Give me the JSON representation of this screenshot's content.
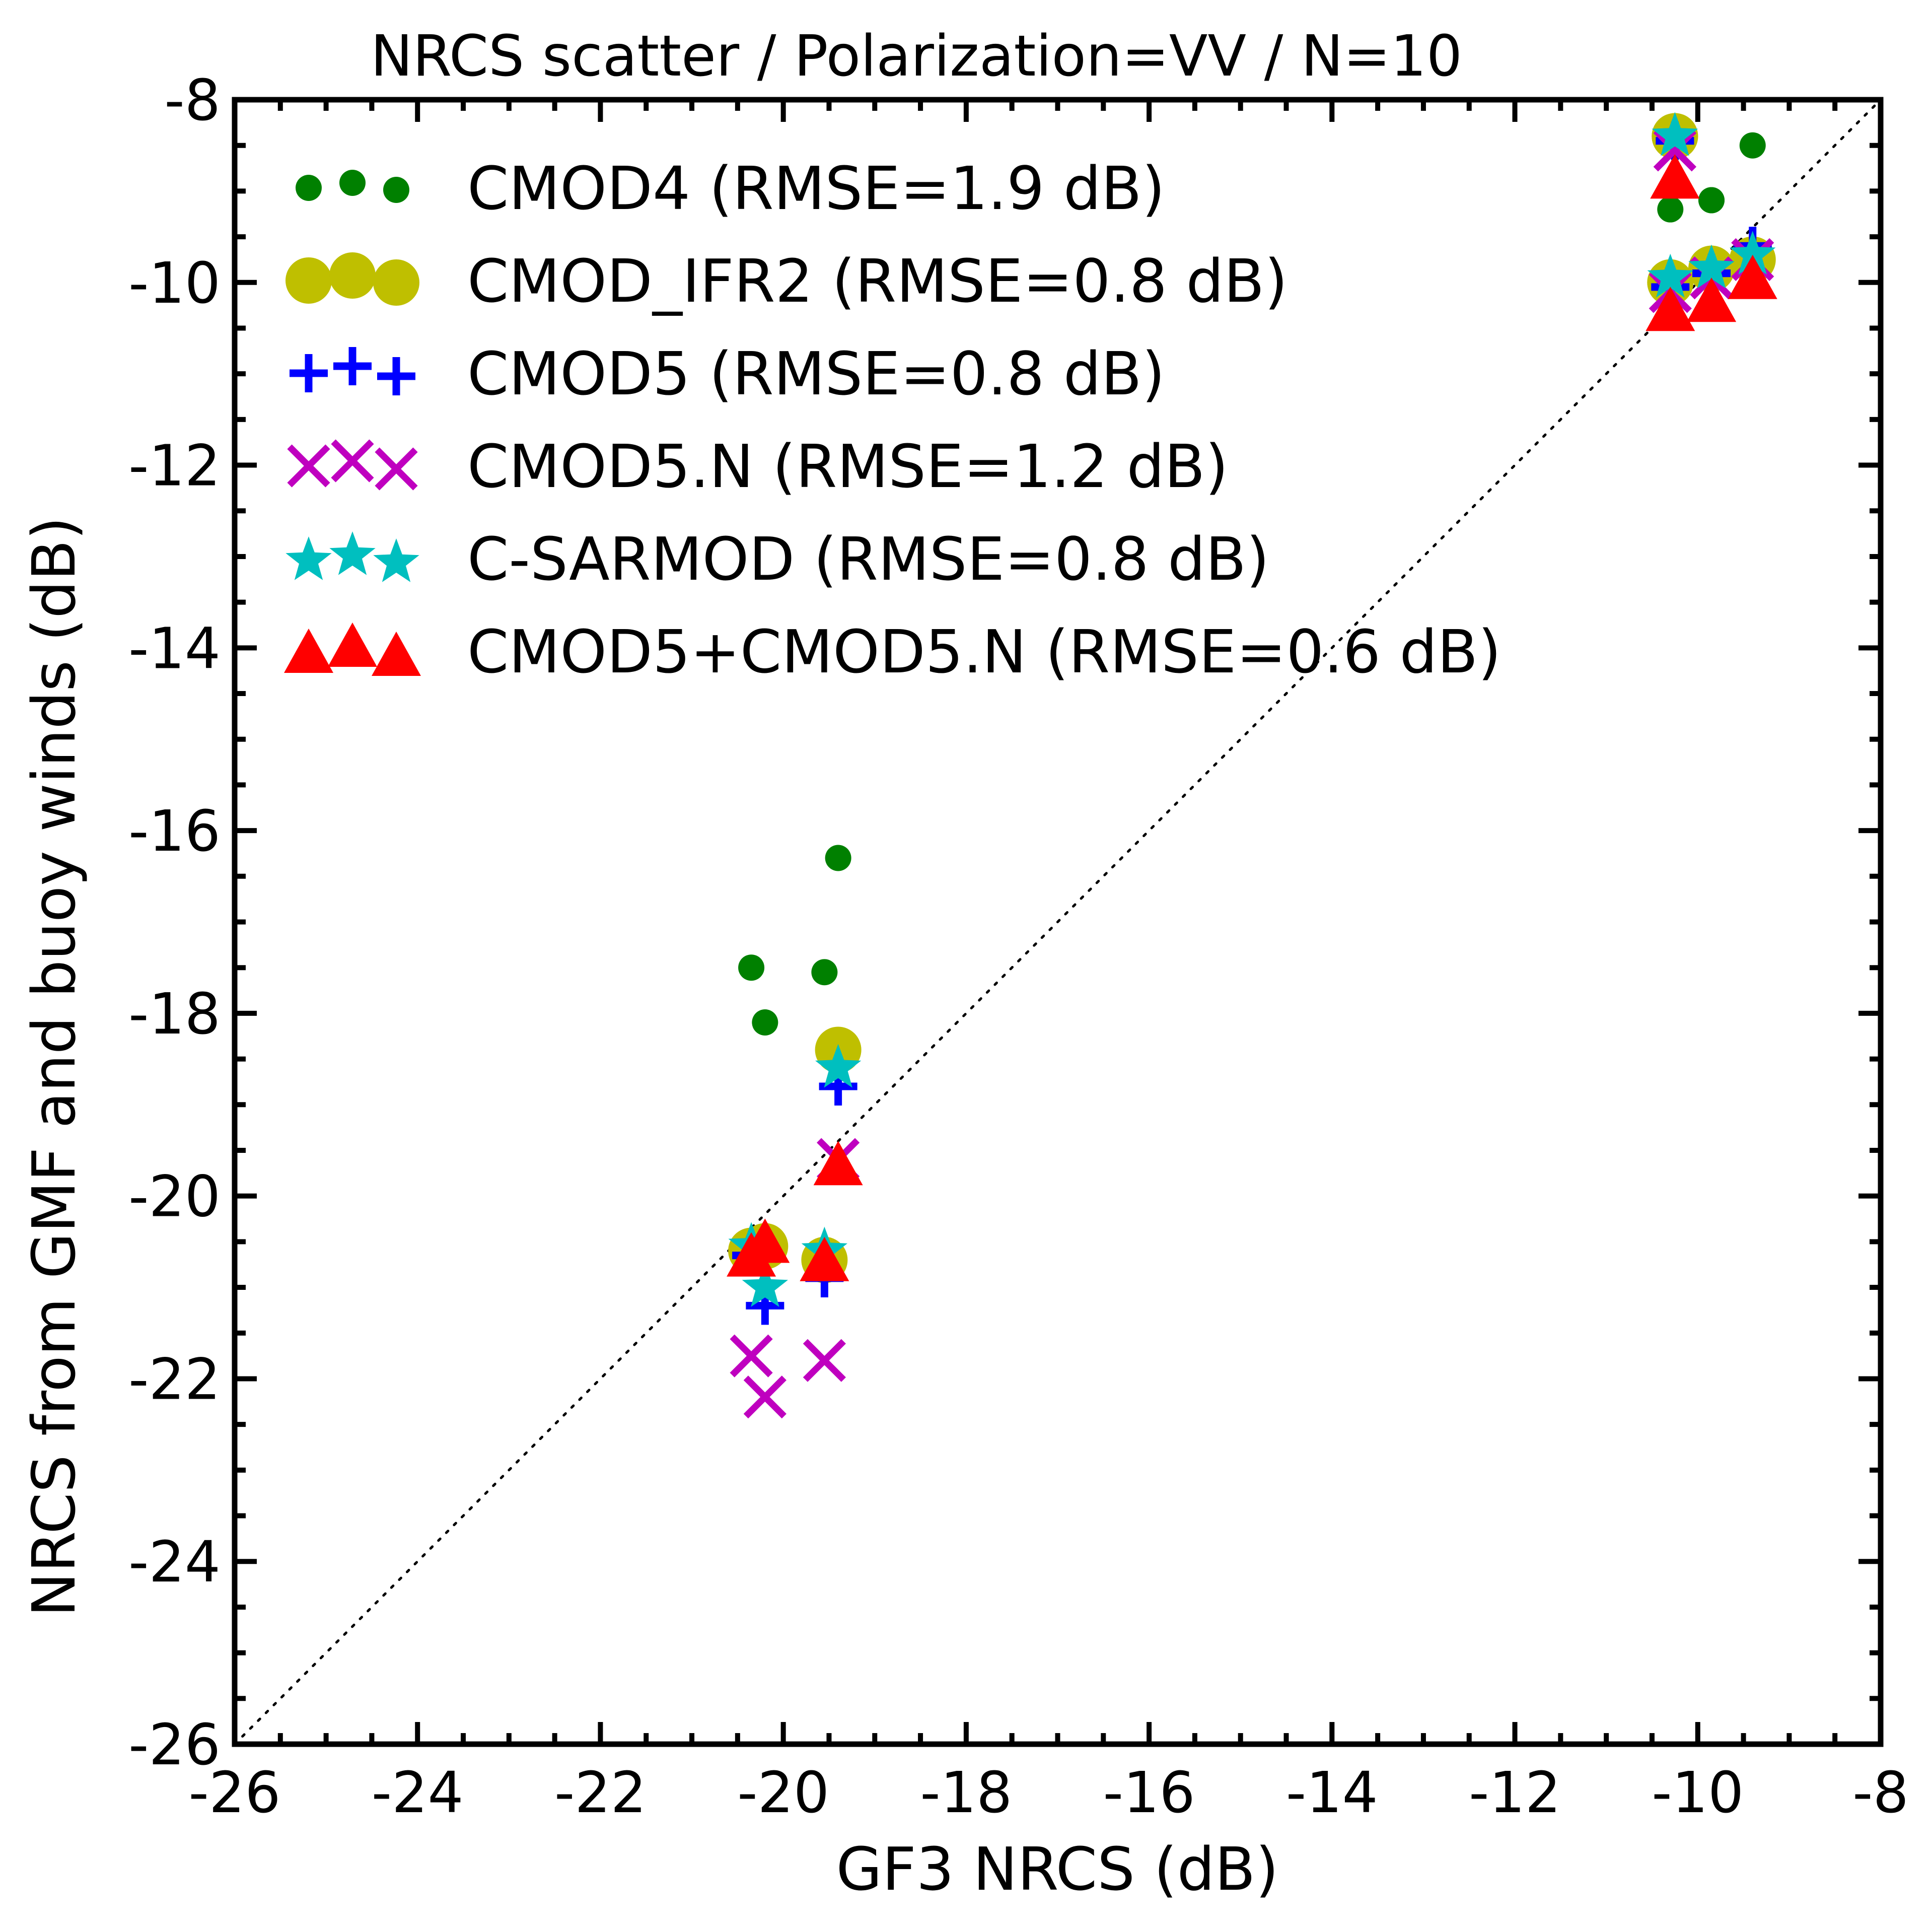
{
  "chart_data": {
    "type": "scatter",
    "title": "NRCS scatter / Polarization=VV / N=10",
    "xlabel": "GF3 NRCS (dB)",
    "ylabel": "NRCS from GMF and buoy winds (dB)",
    "xlim": [
      -26,
      -8
    ],
    "ylim": [
      -26,
      -8
    ],
    "xticks": [
      -26,
      -24,
      -22,
      -20,
      -18,
      -16,
      -14,
      -12,
      -10,
      -8
    ],
    "yticks": [
      -26,
      -24,
      -22,
      -20,
      -18,
      -16,
      -14,
      -12,
      -10,
      -8
    ],
    "xtick_labels": [
      "-26",
      "-24",
      "-22",
      "-20",
      "-18",
      "-16",
      "-14",
      "-12",
      "-10",
      "-8"
    ],
    "ytick_labels": [
      "-26",
      "-24",
      "-22",
      "-20",
      "-18",
      "-16",
      "-14",
      "-12",
      "-10",
      "-8"
    ],
    "reference_line": "y = x (dotted)",
    "legend_position": "upper-left",
    "x": [
      -20.35,
      -20.2,
      -19.55,
      -19.4,
      -10.3,
      -10.25,
      -9.85,
      -9.4,
      -10.25,
      -9.85
    ],
    "series": [
      {
        "name": "CMOD4 (RMSE=1.9 dB)",
        "marker": "circle-small",
        "color": "#008000",
        "points": [
          [
            -20.35,
            -17.5
          ],
          [
            -20.2,
            -18.1
          ],
          [
            -19.55,
            -17.55
          ],
          [
            -19.4,
            -16.3
          ],
          [
            -10.3,
            -9.2
          ],
          [
            -10.25,
            -8.4
          ],
          [
            -9.85,
            -9.1
          ],
          [
            -9.4,
            -8.5
          ],
          [
            -10.25,
            -8.4
          ],
          [
            -9.85,
            -9.1
          ]
        ]
      },
      {
        "name": "CMOD_IFR2 (RMSE=0.8 dB)",
        "marker": "circle-large",
        "color": "#bfbf00",
        "points": [
          [
            -20.35,
            -20.6
          ],
          [
            -20.2,
            -20.55
          ],
          [
            -19.55,
            -20.7
          ],
          [
            -19.4,
            -18.4
          ],
          [
            -10.3,
            -10.0
          ],
          [
            -10.25,
            -8.4
          ],
          [
            -9.85,
            -9.85
          ],
          [
            -9.4,
            -9.75
          ],
          [
            -10.25,
            -8.4
          ],
          [
            -9.85,
            -9.85
          ]
        ]
      },
      {
        "name": "CMOD5 (RMSE=0.8 dB)",
        "marker": "plus",
        "color": "#0000ff",
        "points": [
          [
            -20.35,
            -20.65
          ],
          [
            -20.2,
            -21.2
          ],
          [
            -19.55,
            -20.9
          ],
          [
            -19.4,
            -18.8
          ],
          [
            -10.3,
            -10.05
          ],
          [
            -10.25,
            -8.45
          ],
          [
            -9.85,
            -9.9
          ],
          [
            -9.4,
            -9.6
          ],
          [
            -10.25,
            -8.45
          ],
          [
            -9.85,
            -9.9
          ]
        ]
      },
      {
        "name": "CMOD5.N (RMSE=1.2 dB)",
        "marker": "x",
        "color": "#bf00bf",
        "points": [
          [
            -20.35,
            -21.75
          ],
          [
            -20.2,
            -22.2
          ],
          [
            -19.55,
            -21.8
          ],
          [
            -19.4,
            -19.6
          ],
          [
            -10.3,
            -10.1
          ],
          [
            -10.25,
            -8.55
          ],
          [
            -9.85,
            -9.95
          ],
          [
            -9.4,
            -9.75
          ],
          [
            -10.25,
            -8.55
          ],
          [
            -9.85,
            -9.95
          ]
        ]
      },
      {
        "name": "C-SARMOD (RMSE=0.8 dB)",
        "marker": "star",
        "color": "#00bfbf",
        "points": [
          [
            -20.35,
            -20.55
          ],
          [
            -20.2,
            -21.0
          ],
          [
            -19.55,
            -20.6
          ],
          [
            -19.4,
            -18.6
          ],
          [
            -10.3,
            -9.95
          ],
          [
            -10.25,
            -8.4
          ],
          [
            -9.85,
            -9.85
          ],
          [
            -9.4,
            -9.7
          ],
          [
            -10.25,
            -8.4
          ],
          [
            -9.85,
            -9.85
          ]
        ]
      },
      {
        "name": "CMOD5+CMOD5.N (RMSE=0.6 dB)",
        "marker": "triangle",
        "color": "#ff0000",
        "points": [
          [
            -20.35,
            -20.7
          ],
          [
            -20.2,
            -20.55
          ],
          [
            -19.55,
            -20.75
          ],
          [
            -19.4,
            -19.7
          ],
          [
            -10.3,
            -10.35
          ],
          [
            -10.25,
            -8.9
          ],
          [
            -9.85,
            -10.25
          ],
          [
            -9.4,
            -10.0
          ],
          [
            -10.25,
            -8.9
          ],
          [
            -9.85,
            -10.25
          ]
        ]
      }
    ]
  }
}
